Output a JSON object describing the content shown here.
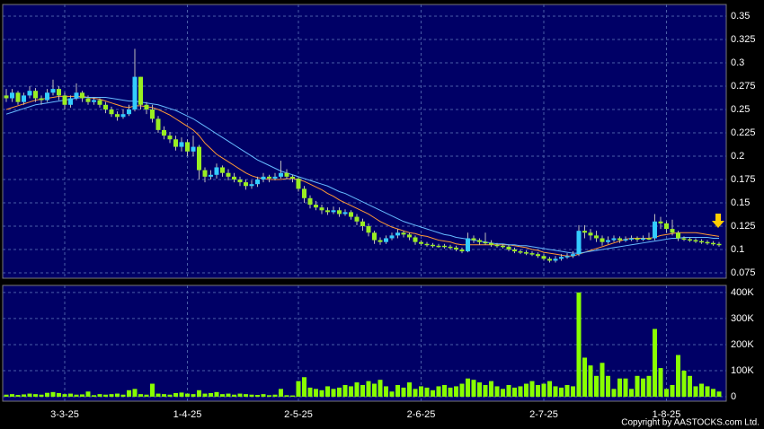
{
  "chart_data": [
    {
      "type": "candlestick",
      "open": [
        0.265,
        0.262,
        0.268,
        0.258,
        0.265,
        0.27,
        0.262,
        0.26,
        0.268,
        0.272,
        0.265,
        0.255,
        0.262,
        0.268,
        0.262,
        0.258,
        0.26,
        0.255,
        0.25,
        0.245,
        0.242,
        0.245,
        0.25,
        0.285,
        0.255,
        0.25,
        0.24,
        0.228,
        0.222,
        0.218,
        0.21,
        0.215,
        0.205,
        0.21,
        0.185,
        0.178,
        0.18,
        0.188,
        0.182,
        0.178,
        0.175,
        0.172,
        0.168,
        0.17,
        0.175,
        0.178,
        0.176,
        0.178,
        0.182,
        0.178,
        0.176,
        0.165,
        0.155,
        0.148,
        0.145,
        0.142,
        0.14,
        0.142,
        0.138,
        0.14,
        0.135,
        0.13,
        0.125,
        0.118,
        0.11,
        0.108,
        0.112,
        0.115,
        0.118,
        0.116,
        0.113,
        0.108,
        0.106,
        0.105,
        0.104,
        0.104,
        0.103,
        0.102,
        0.1,
        0.098,
        0.112,
        0.11,
        0.108,
        0.107,
        0.105,
        0.104,
        0.103,
        0.1,
        0.098,
        0.097,
        0.096,
        0.095,
        0.093,
        0.09,
        0.088,
        0.09,
        0.092,
        0.093,
        0.095,
        0.12,
        0.118,
        0.115,
        0.112,
        0.108,
        0.11,
        0.112,
        0.11,
        0.111,
        0.112,
        0.111,
        0.112,
        0.112,
        0.13,
        0.128,
        0.122,
        0.118,
        0.112,
        0.111,
        0.11,
        0.109,
        0.108,
        0.107,
        0.106
      ],
      "high": [
        0.272,
        0.272,
        0.27,
        0.268,
        0.275,
        0.273,
        0.265,
        0.272,
        0.282,
        0.275,
        0.268,
        0.265,
        0.278,
        0.27,
        0.265,
        0.263,
        0.262,
        0.258,
        0.253,
        0.248,
        0.25,
        0.255,
        0.315,
        0.285,
        0.258,
        0.255,
        0.243,
        0.232,
        0.226,
        0.222,
        0.22,
        0.218,
        0.222,
        0.212,
        0.188,
        0.185,
        0.192,
        0.19,
        0.186,
        0.182,
        0.178,
        0.175,
        0.174,
        0.178,
        0.182,
        0.18,
        0.182,
        0.195,
        0.186,
        0.18,
        0.178,
        0.168,
        0.158,
        0.152,
        0.148,
        0.145,
        0.146,
        0.145,
        0.143,
        0.142,
        0.138,
        0.133,
        0.128,
        0.12,
        0.113,
        0.115,
        0.118,
        0.122,
        0.12,
        0.118,
        0.115,
        0.11,
        0.108,
        0.107,
        0.106,
        0.106,
        0.105,
        0.104,
        0.102,
        0.118,
        0.115,
        0.112,
        0.118,
        0.11,
        0.107,
        0.106,
        0.105,
        0.102,
        0.1,
        0.099,
        0.098,
        0.097,
        0.095,
        0.092,
        0.093,
        0.095,
        0.096,
        0.098,
        0.126,
        0.126,
        0.122,
        0.12,
        0.115,
        0.114,
        0.115,
        0.114,
        0.114,
        0.115,
        0.114,
        0.115,
        0.118,
        0.138,
        0.135,
        0.13,
        0.132,
        0.12,
        0.114,
        0.113,
        0.112,
        0.111,
        0.11,
        0.109,
        0.108
      ],
      "low": [
        0.258,
        0.258,
        0.255,
        0.255,
        0.262,
        0.258,
        0.255,
        0.258,
        0.265,
        0.26,
        0.25,
        0.252,
        0.26,
        0.258,
        0.255,
        0.255,
        0.252,
        0.246,
        0.242,
        0.238,
        0.24,
        0.243,
        0.248,
        0.25,
        0.245,
        0.236,
        0.225,
        0.218,
        0.214,
        0.206,
        0.205,
        0.2,
        0.2,
        0.175,
        0.172,
        0.175,
        0.176,
        0.178,
        0.174,
        0.172,
        0.168,
        0.164,
        0.165,
        0.167,
        0.172,
        0.172,
        0.174,
        0.176,
        0.175,
        0.172,
        0.162,
        0.15,
        0.144,
        0.142,
        0.138,
        0.137,
        0.138,
        0.135,
        0.136,
        0.132,
        0.126,
        0.12,
        0.114,
        0.106,
        0.105,
        0.106,
        0.11,
        0.112,
        0.113,
        0.11,
        0.105,
        0.104,
        0.103,
        0.102,
        0.102,
        0.101,
        0.1,
        0.098,
        0.096,
        0.097,
        0.107,
        0.105,
        0.105,
        0.103,
        0.102,
        0.101,
        0.098,
        0.096,
        0.095,
        0.094,
        0.093,
        0.091,
        0.088,
        0.086,
        0.086,
        0.088,
        0.09,
        0.091,
        0.093,
        0.112,
        0.11,
        0.108,
        0.104,
        0.106,
        0.108,
        0.107,
        0.108,
        0.109,
        0.108,
        0.109,
        0.11,
        0.11,
        0.122,
        0.118,
        0.115,
        0.109,
        0.109,
        0.108,
        0.107,
        0.106,
        0.105,
        0.104,
        0.103
      ],
      "close": [
        0.262,
        0.268,
        0.258,
        0.265,
        0.27,
        0.262,
        0.26,
        0.268,
        0.272,
        0.265,
        0.255,
        0.262,
        0.268,
        0.262,
        0.258,
        0.26,
        0.255,
        0.25,
        0.245,
        0.242,
        0.245,
        0.25,
        0.285,
        0.255,
        0.25,
        0.24,
        0.228,
        0.222,
        0.218,
        0.21,
        0.215,
        0.205,
        0.21,
        0.185,
        0.178,
        0.18,
        0.188,
        0.182,
        0.178,
        0.175,
        0.172,
        0.168,
        0.17,
        0.175,
        0.178,
        0.176,
        0.178,
        0.182,
        0.178,
        0.176,
        0.165,
        0.155,
        0.148,
        0.145,
        0.142,
        0.14,
        0.142,
        0.138,
        0.14,
        0.135,
        0.13,
        0.125,
        0.118,
        0.11,
        0.108,
        0.112,
        0.115,
        0.118,
        0.116,
        0.113,
        0.108,
        0.106,
        0.105,
        0.104,
        0.104,
        0.103,
        0.102,
        0.1,
        0.098,
        0.112,
        0.11,
        0.108,
        0.107,
        0.105,
        0.104,
        0.103,
        0.1,
        0.098,
        0.097,
        0.096,
        0.095,
        0.093,
        0.09,
        0.088,
        0.09,
        0.092,
        0.093,
        0.095,
        0.12,
        0.118,
        0.115,
        0.112,
        0.108,
        0.11,
        0.112,
        0.11,
        0.111,
        0.112,
        0.111,
        0.112,
        0.112,
        0.13,
        0.128,
        0.122,
        0.118,
        0.112,
        0.111,
        0.11,
        0.109,
        0.108,
        0.107,
        0.106,
        0.105
      ],
      "up_color": "#33ccff",
      "down_color": "#99ee22",
      "lines": [
        {
          "color": "#ff9933",
          "values": [
            0.25,
            0.252,
            0.254,
            0.256,
            0.258,
            0.26,
            0.261,
            0.262,
            0.263,
            0.264,
            0.264,
            0.264,
            0.264,
            0.264,
            0.263,
            0.262,
            0.261,
            0.259,
            0.257,
            0.255,
            0.253,
            0.252,
            0.254,
            0.254,
            0.253,
            0.252,
            0.25,
            0.247,
            0.244,
            0.24,
            0.236,
            0.232,
            0.228,
            0.222,
            0.214,
            0.208,
            0.202,
            0.198,
            0.194,
            0.19,
            0.186,
            0.182,
            0.179,
            0.177,
            0.176,
            0.175,
            0.175,
            0.175,
            0.176,
            0.176,
            0.175,
            0.173,
            0.17,
            0.167,
            0.164,
            0.16,
            0.157,
            0.153,
            0.15,
            0.147,
            0.144,
            0.141,
            0.138,
            0.134,
            0.13,
            0.127,
            0.124,
            0.122,
            0.12,
            0.118,
            0.117,
            0.115,
            0.114,
            0.112,
            0.11,
            0.109,
            0.108,
            0.106,
            0.105,
            0.105,
            0.105,
            0.105,
            0.105,
            0.105,
            0.105,
            0.105,
            0.105,
            0.104,
            0.103,
            0.102,
            0.1,
            0.099,
            0.097,
            0.096,
            0.095,
            0.094,
            0.093,
            0.093,
            0.095,
            0.097,
            0.099,
            0.101,
            0.103,
            0.105,
            0.107,
            0.109,
            0.111,
            0.112,
            0.112,
            0.112,
            0.112,
            0.113,
            0.115,
            0.116,
            0.117,
            0.118,
            0.118,
            0.118,
            0.118,
            0.117,
            0.116,
            0.115,
            0.114
          ]
        },
        {
          "color": "#66bbff",
          "values": [
            0.245,
            0.247,
            0.249,
            0.251,
            0.253,
            0.255,
            0.256,
            0.257,
            0.258,
            0.259,
            0.26,
            0.261,
            0.262,
            0.263,
            0.263,
            0.263,
            0.263,
            0.263,
            0.262,
            0.261,
            0.26,
            0.259,
            0.259,
            0.258,
            0.257,
            0.256,
            0.255,
            0.253,
            0.251,
            0.249,
            0.246,
            0.243,
            0.24,
            0.236,
            0.232,
            0.228,
            0.224,
            0.22,
            0.216,
            0.212,
            0.208,
            0.204,
            0.2,
            0.196,
            0.193,
            0.19,
            0.187,
            0.184,
            0.182,
            0.18,
            0.178,
            0.176,
            0.174,
            0.172,
            0.17,
            0.168,
            0.165,
            0.162,
            0.16,
            0.157,
            0.154,
            0.151,
            0.148,
            0.145,
            0.142,
            0.139,
            0.136,
            0.133,
            0.13,
            0.128,
            0.126,
            0.124,
            0.122,
            0.12,
            0.118,
            0.116,
            0.115,
            0.113,
            0.112,
            0.111,
            0.11,
            0.109,
            0.108,
            0.107,
            0.106,
            0.106,
            0.105,
            0.105,
            0.104,
            0.104,
            0.103,
            0.102,
            0.101,
            0.1,
            0.099,
            0.098,
            0.097,
            0.096,
            0.096,
            0.097,
            0.098,
            0.099,
            0.1,
            0.101,
            0.102,
            0.103,
            0.104,
            0.105,
            0.106,
            0.107,
            0.108,
            0.109,
            0.11,
            0.111,
            0.112,
            0.112,
            0.113,
            0.113,
            0.113,
            0.113,
            0.113,
            0.112,
            0.112
          ]
        }
      ],
      "ylim": [
        0.0692,
        0.3625
      ],
      "yticks": [
        0.075,
        0.1,
        0.125,
        0.15,
        0.175,
        0.2,
        0.225,
        0.25,
        0.275,
        0.3,
        0.325,
        0.35
      ],
      "grid": true
    },
    {
      "type": "bar",
      "categories": [
        null,
        null,
        null,
        null,
        null,
        null,
        null,
        null,
        null,
        null,
        "3-3-25",
        null,
        null,
        null,
        null,
        null,
        null,
        null,
        null,
        null,
        null,
        null,
        null,
        null,
        null,
        null,
        null,
        null,
        null,
        null,
        null,
        "1-4-25",
        null,
        null,
        null,
        null,
        null,
        null,
        null,
        null,
        null,
        null,
        null,
        null,
        null,
        null,
        null,
        null,
        null,
        null,
        "2-5-25",
        null,
        null,
        null,
        null,
        null,
        null,
        null,
        null,
        null,
        null,
        null,
        null,
        null,
        null,
        null,
        null,
        null,
        null,
        null,
        null,
        "2-6-25",
        null,
        null,
        null,
        null,
        null,
        null,
        null,
        null,
        null,
        null,
        null,
        null,
        null,
        null,
        null,
        null,
        null,
        null,
        null,
        null,
        "2-7-25",
        null,
        null,
        null,
        null,
        null,
        null,
        null,
        null,
        null,
        null,
        null,
        null,
        null,
        null,
        null,
        null,
        null,
        null,
        null,
        null,
        "1-8-25",
        null,
        null,
        null,
        null,
        null,
        null,
        null,
        null,
        null
      ],
      "values": [
        8000,
        10000,
        7000,
        9000,
        12000,
        10000,
        8000,
        15000,
        18000,
        14000,
        10000,
        12000,
        8000,
        9000,
        20000,
        6000,
        10000,
        8000,
        10000,
        12000,
        8000,
        25000,
        30000,
        10000,
        8000,
        50000,
        12000,
        10000,
        8000,
        14000,
        16000,
        12000,
        10000,
        25000,
        12000,
        14000,
        18000,
        10000,
        12000,
        8000,
        12000,
        10000,
        8000,
        7000,
        10000,
        6000,
        8000,
        30000,
        6000,
        5000,
        60000,
        75000,
        35000,
        30000,
        25000,
        40000,
        30000,
        35000,
        45000,
        40000,
        55000,
        45000,
        60000,
        50000,
        65000,
        40000,
        20000,
        45000,
        35000,
        55000,
        30000,
        40000,
        35000,
        25000,
        40000,
        45000,
        35000,
        40000,
        50000,
        70000,
        65000,
        55000,
        45000,
        60000,
        40000,
        30000,
        45000,
        35000,
        40000,
        50000,
        60000,
        45000,
        50000,
        60000,
        40000,
        35000,
        45000,
        40000,
        400000,
        150000,
        120000,
        80000,
        130000,
        80000,
        30000,
        70000,
        70000,
        30000,
        80000,
        70000,
        80000,
        260000,
        110000,
        30000,
        45000,
        160000,
        100000,
        80000,
        40000,
        50000,
        40000,
        30000,
        20000
      ],
      "color": "#88ff00",
      "ylim": [
        -17000,
        427000
      ],
      "yticks": [
        0,
        {
          "value": 100000,
          "label": "100K"
        },
        {
          "value": 200000,
          "label": "200K"
        },
        {
          "value": 300000,
          "label": "300K"
        },
        {
          "value": 400000,
          "label": "400K"
        }
      ],
      "grid": true
    }
  ],
  "copyright": "Copyright by AASTOCKS.com Ltd."
}
